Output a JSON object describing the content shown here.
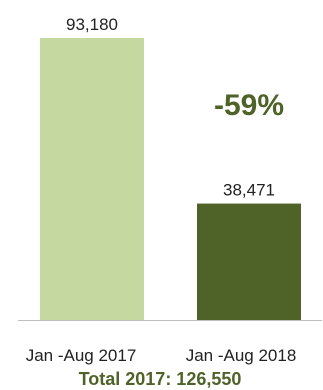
{
  "chart_data": {
    "type": "bar",
    "categories": [
      "Jan -Aug 2017",
      "Jan -Aug 2018"
    ],
    "values": [
      93180,
      38471
    ],
    "data_labels": [
      "93,180",
      "38,471"
    ],
    "ylim": [
      0,
      100000
    ],
    "grid": false,
    "annotations": {
      "change": "-59%",
      "total": "Total 2017: 126,550"
    }
  },
  "colors": {
    "bar_2017": "#c5d89f",
    "bar_2018": "#4f6228",
    "change": "#4f6228",
    "total": "#4f6228",
    "axis": "#bfbfbf"
  }
}
